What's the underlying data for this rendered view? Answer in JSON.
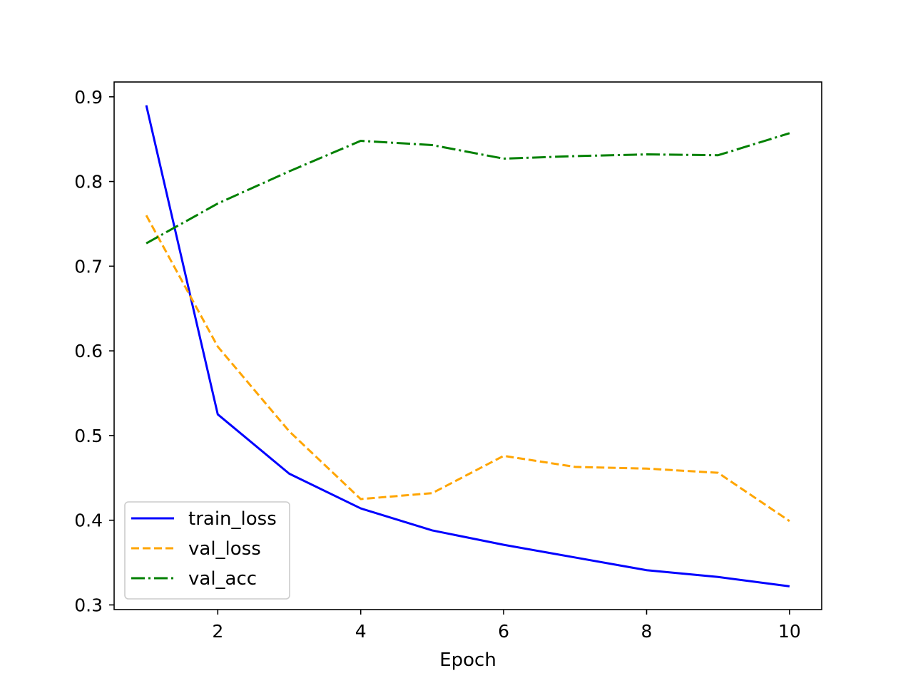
{
  "chart_data": {
    "type": "line",
    "title": "",
    "xlabel": "Epoch",
    "ylabel": "",
    "x": [
      1,
      2,
      3,
      4,
      5,
      6,
      7,
      8,
      9,
      10
    ],
    "xlim": [
      0.55,
      10.45
    ],
    "ylim": [
      0.2945,
      0.9175
    ],
    "xticks": [
      2,
      4,
      6,
      8,
      10
    ],
    "xtick_labels": [
      "2",
      "4",
      "6",
      "8",
      "10"
    ],
    "yticks": [
      0.3,
      0.4,
      0.5,
      0.6,
      0.7,
      0.8,
      0.9
    ],
    "ytick_labels": [
      "0.3",
      "0.4",
      "0.5",
      "0.6",
      "0.7",
      "0.8",
      "0.9"
    ],
    "grid": false,
    "legend_position": "lower-left",
    "series": [
      {
        "name": "train_loss",
        "color": "#0000ff",
        "line_style": "solid",
        "values": [
          0.89,
          0.525,
          0.455,
          0.414,
          0.388,
          0.371,
          0.356,
          0.341,
          0.333,
          0.322
        ]
      },
      {
        "name": "val_loss",
        "color": "#ffa500",
        "line_style": "dashed",
        "values": [
          0.76,
          0.605,
          0.505,
          0.425,
          0.432,
          0.476,
          0.463,
          0.461,
          0.456,
          0.399
        ]
      },
      {
        "name": "val_acc",
        "color": "#008000",
        "line_style": "dashdot",
        "values": [
          0.727,
          0.774,
          0.812,
          0.848,
          0.843,
          0.827,
          0.83,
          0.832,
          0.831,
          0.857
        ]
      }
    ]
  }
}
